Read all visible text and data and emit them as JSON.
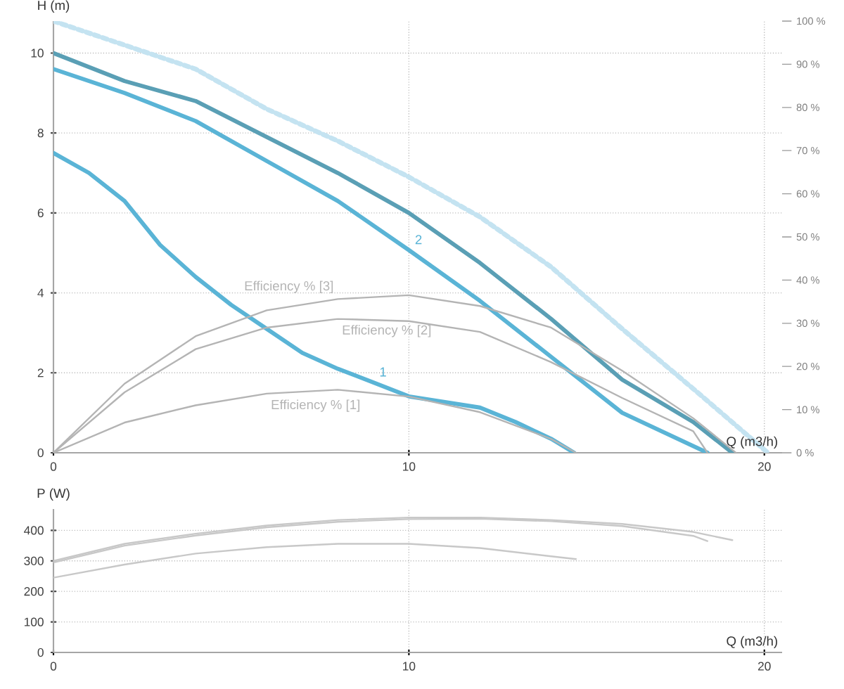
{
  "chart_data": [
    {
      "type": "line",
      "xlabel": "Q (m3/h)",
      "ylabel": "H (m)",
      "xlim": [
        0,
        20.5
      ],
      "ylim": [
        0,
        10.8
      ],
      "xticks": [
        0,
        10,
        20
      ],
      "yticks": [
        0,
        2,
        4,
        6,
        8,
        10
      ],
      "y2lim": [
        0,
        100
      ],
      "y2ticks": [
        {
          "value": 0,
          "label": "0 %"
        },
        {
          "value": 10,
          "label": "10 %"
        },
        {
          "value": 20,
          "label": "20 %"
        },
        {
          "value": 30,
          "label": "30 %"
        },
        {
          "value": 40,
          "label": "40 %"
        },
        {
          "value": 50,
          "label": "50 %"
        },
        {
          "value": 60,
          "label": "60 %"
        },
        {
          "value": 70,
          "label": "70 %"
        },
        {
          "value": 80,
          "label": "80 %"
        },
        {
          "value": 90,
          "label": "90 %"
        },
        {
          "value": 100,
          "label": "100 %"
        }
      ],
      "grid": true,
      "marker": "none",
      "series": [
        {
          "color": "#c4e3f1",
          "line_style": "dotted",
          "x": [
            0,
            2,
            4,
            6,
            8,
            10,
            12,
            14,
            16,
            18,
            20.1
          ],
          "values": [
            10.8,
            10.2,
            9.6,
            8.6,
            7.8,
            6.9,
            5.9,
            4.65,
            3.1,
            1.6,
            0
          ]
        },
        {
          "color": "#5a9fb5",
          "x": [
            0,
            2,
            4,
            6,
            8,
            10,
            12,
            14,
            16,
            18,
            19.1
          ],
          "values": [
            10.0,
            9.3,
            8.8,
            7.9,
            7.0,
            6.0,
            4.75,
            3.35,
            1.83,
            0.77,
            0
          ]
        },
        {
          "name": "2",
          "color": "#5ab4d6",
          "x": [
            0,
            2,
            4,
            6,
            8,
            10,
            12,
            14,
            16,
            18.4
          ],
          "values": [
            9.6,
            9.0,
            8.3,
            7.3,
            6.3,
            5.07,
            3.8,
            2.4,
            1.0,
            0
          ]
        },
        {
          "name": "1",
          "color": "#5ab4d6",
          "x": [
            0,
            1,
            2,
            3,
            4,
            5,
            6,
            7,
            8,
            9,
            10,
            12,
            13,
            14,
            14.65
          ],
          "values": [
            7.5,
            7.0,
            6.3,
            5.2,
            4.4,
            3.7,
            3.1,
            2.5,
            2.1,
            1.76,
            1.41,
            1.13,
            0.77,
            0.35,
            0
          ]
        },
        {
          "name": "Efficiency % [3]",
          "color": "#b4b4b4",
          "axis": "y2",
          "x": [
            0,
            2,
            4,
            6,
            8,
            10,
            12,
            14,
            16,
            18,
            19.2
          ],
          "values": [
            0,
            16,
            27,
            33,
            35.6,
            36.5,
            34,
            29,
            19,
            8,
            0
          ]
        },
        {
          "name": "Efficiency % [2]",
          "color": "#b4b4b4",
          "axis": "y2",
          "x": [
            0,
            2,
            4,
            6,
            8,
            10,
            12,
            14,
            16,
            18,
            18.4
          ],
          "values": [
            0,
            14,
            24,
            29,
            31,
            30.5,
            28,
            21,
            12.7,
            5,
            0
          ]
        },
        {
          "name": "Efficiency % [1]",
          "color": "#b4b4b4",
          "axis": "y2",
          "x": [
            0,
            2,
            4,
            6,
            8,
            10,
            12,
            14,
            14.7
          ],
          "values": [
            0,
            7,
            11,
            13.7,
            14.6,
            13,
            9.4,
            3.2,
            0
          ]
        }
      ]
    },
    {
      "type": "line",
      "xlabel": "Q (m3/h)",
      "ylabel": "P (W)",
      "xlim": [
        0,
        20.5
      ],
      "ylim": [
        0,
        470
      ],
      "xticks": [
        0,
        10,
        20
      ],
      "yticks": [
        0,
        100,
        200,
        300,
        400
      ],
      "grid": true,
      "marker": "none",
      "series": [
        {
          "color": "#c8c8c8",
          "x": [
            0,
            2,
            4,
            6,
            8,
            10,
            12,
            14,
            16,
            18,
            19.1
          ],
          "values": [
            300,
            356,
            389,
            416,
            434,
            442,
            442,
            434,
            421,
            395,
            368
          ]
        },
        {
          "color": "#c8c8c8",
          "x": [
            0,
            2,
            4,
            6,
            8,
            10,
            12,
            14,
            16,
            18,
            18.4
          ],
          "values": [
            295,
            350,
            383,
            410,
            428,
            437,
            438,
            430,
            414,
            382,
            365
          ]
        },
        {
          "color": "#c8c8c8",
          "x": [
            0,
            2,
            4,
            6,
            8,
            10,
            12,
            14,
            14.7
          ],
          "values": [
            245,
            288,
            324,
            345,
            356,
            356,
            342,
            315,
            306
          ]
        }
      ]
    }
  ]
}
